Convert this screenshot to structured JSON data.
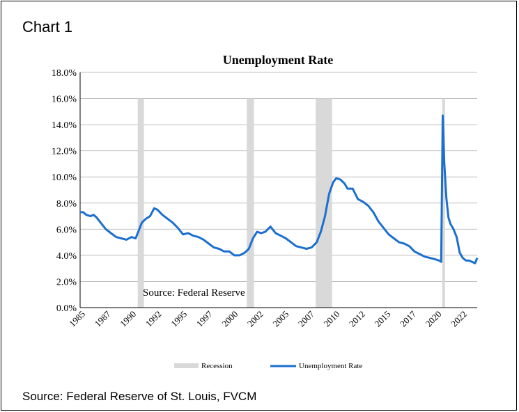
{
  "header": {
    "label": "Chart 1"
  },
  "footer": {
    "source": "Source: Federal Reserve of St. Louis, FVCM"
  },
  "chart_data": {
    "type": "line",
    "title": "Unemployment Rate",
    "xlabel": "",
    "ylabel": "",
    "ylim": [
      0,
      18
    ],
    "xlim": [
      1985,
      2023.6
    ],
    "y_ticks": [
      "0.0%",
      "2.0%",
      "4.0%",
      "6.0%",
      "8.0%",
      "10.0%",
      "12.0%",
      "14.0%",
      "16.0%",
      "18.0%"
    ],
    "x_ticks": [
      "1985",
      "1987",
      "1990",
      "1992",
      "1995",
      "1997",
      "2000",
      "2002",
      "2005",
      "2007",
      "2010",
      "2012",
      "2015",
      "2017",
      "2020",
      "2022"
    ],
    "annotation": "Source: Federal Reserve",
    "legend": {
      "position": "bottom",
      "entries": [
        "Recession",
        "Unemployment Rate"
      ]
    },
    "colors": {
      "line": "#1b6fd0",
      "recession": "#d9d9d9"
    },
    "recessions": [
      {
        "start": 1990.6,
        "end": 1991.2,
        "height": 16
      },
      {
        "start": 2001.2,
        "end": 2001.9,
        "height": 16
      },
      {
        "start": 2007.9,
        "end": 2009.5,
        "height": 16
      },
      {
        "start": 2020.2,
        "end": 2020.4,
        "height": 16
      }
    ],
    "series": [
      {
        "name": "Unemployment Rate",
        "x": [
          1985.0,
          1985.3,
          1985.6,
          1986.0,
          1986.3,
          1986.6,
          1987.0,
          1987.5,
          1988.0,
          1988.5,
          1989.0,
          1989.5,
          1990.0,
          1990.4,
          1990.7,
          1991.0,
          1991.4,
          1991.8,
          1992.2,
          1992.5,
          1993.0,
          1993.5,
          1994.0,
          1994.5,
          1995.0,
          1995.5,
          1996.0,
          1996.5,
          1997.0,
          1997.5,
          1998.0,
          1998.5,
          1999.0,
          1999.5,
          2000.0,
          2000.5,
          2001.0,
          2001.4,
          2001.8,
          2002.2,
          2002.6,
          2003.0,
          2003.5,
          2004.0,
          2004.5,
          2005.0,
          2005.5,
          2006.0,
          2006.5,
          2007.0,
          2007.5,
          2008.0,
          2008.4,
          2008.8,
          2009.2,
          2009.6,
          2009.9,
          2010.3,
          2010.7,
          2011.0,
          2011.5,
          2012.0,
          2012.5,
          2013.0,
          2013.5,
          2014.0,
          2014.5,
          2015.0,
          2015.5,
          2016.0,
          2016.5,
          2017.0,
          2017.5,
          2018.0,
          2018.5,
          2019.0,
          2019.5,
          2019.9,
          2020.1,
          2020.25,
          2020.4,
          2020.6,
          2020.8,
          2021.0,
          2021.3,
          2021.6,
          2021.9,
          2022.2,
          2022.5,
          2022.8,
          2023.1,
          2023.4,
          2023.6
        ],
        "values": [
          7.3,
          7.3,
          7.1,
          7.0,
          7.1,
          6.9,
          6.5,
          6.0,
          5.7,
          5.4,
          5.3,
          5.2,
          5.4,
          5.3,
          5.9,
          6.5,
          6.8,
          7.0,
          7.6,
          7.5,
          7.1,
          6.8,
          6.5,
          6.1,
          5.6,
          5.7,
          5.5,
          5.4,
          5.2,
          4.9,
          4.6,
          4.5,
          4.3,
          4.3,
          4.0,
          4.0,
          4.2,
          4.5,
          5.3,
          5.8,
          5.7,
          5.8,
          6.2,
          5.7,
          5.5,
          5.3,
          5.0,
          4.7,
          4.6,
          4.5,
          4.6,
          5.0,
          5.8,
          7.0,
          8.7,
          9.6,
          9.9,
          9.8,
          9.5,
          9.1,
          9.1,
          8.3,
          8.1,
          7.8,
          7.3,
          6.6,
          6.1,
          5.6,
          5.3,
          5.0,
          4.9,
          4.7,
          4.3,
          4.1,
          3.9,
          3.8,
          3.7,
          3.6,
          3.5,
          14.7,
          11.1,
          8.4,
          6.9,
          6.4,
          6.0,
          5.4,
          4.2,
          3.8,
          3.6,
          3.6,
          3.5,
          3.4,
          3.8
        ]
      }
    ]
  }
}
